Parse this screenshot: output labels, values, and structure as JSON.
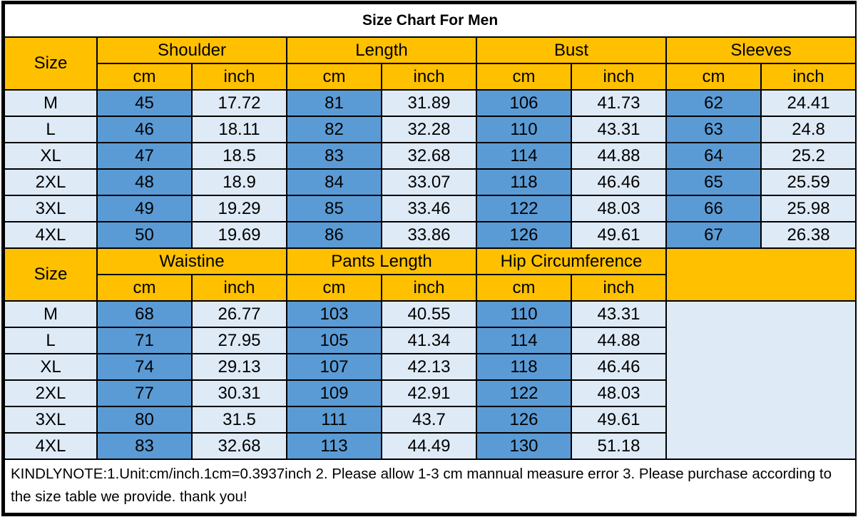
{
  "colors": {
    "header_bg": "#FFC000",
    "cm_bg": "#5B9BD5",
    "light_bg": "#DEEAF6",
    "border_color": "#000000",
    "title_bg": "#FFFFFF",
    "text_color": "#000000"
  },
  "chart_data": {
    "type": "table",
    "title": "Size Chart For Men",
    "tables": [
      {
        "size_label": "Size",
        "groups": [
          "Shoulder",
          "Length",
          "Bust",
          "Sleeves"
        ],
        "unit_labels": [
          "cm",
          "inch"
        ],
        "rows": [
          {
            "size": "M",
            "cells": [
              "45",
              "17.72",
              "81",
              "31.89",
              "106",
              "41.73",
              "62",
              "24.41"
            ]
          },
          {
            "size": "L",
            "cells": [
              "46",
              "18.11",
              "82",
              "32.28",
              "110",
              "43.31",
              "63",
              "24.8"
            ]
          },
          {
            "size": "XL",
            "cells": [
              "47",
              "18.5",
              "83",
              "32.68",
              "114",
              "44.88",
              "64",
              "25.2"
            ]
          },
          {
            "size": "2XL",
            "cells": [
              "48",
              "18.9",
              "84",
              "33.07",
              "118",
              "46.46",
              "65",
              "25.59"
            ]
          },
          {
            "size": "3XL",
            "cells": [
              "49",
              "19.29",
              "85",
              "33.46",
              "122",
              "48.03",
              "66",
              "25.98"
            ]
          },
          {
            "size": "4XL",
            "cells": [
              "50",
              "19.69",
              "86",
              "33.86",
              "126",
              "49.61",
              "67",
              "26.38"
            ]
          }
        ]
      },
      {
        "size_label": "Size",
        "groups": [
          "Waistine",
          "Pants Length",
          "Hip Circumference"
        ],
        "unit_labels": [
          "cm",
          "inch"
        ],
        "rows": [
          {
            "size": "M",
            "cells": [
              "68",
              "26.77",
              "103",
              "40.55",
              "110",
              "43.31"
            ]
          },
          {
            "size": "L",
            "cells": [
              "71",
              "27.95",
              "105",
              "41.34",
              "114",
              "44.88"
            ]
          },
          {
            "size": "XL",
            "cells": [
              "74",
              "29.13",
              "107",
              "42.13",
              "118",
              "46.46"
            ]
          },
          {
            "size": "2XL",
            "cells": [
              "77",
              "30.31",
              "109",
              "42.91",
              "122",
              "48.03"
            ]
          },
          {
            "size": "3XL",
            "cells": [
              "80",
              "31.5",
              "111",
              "43.7",
              "126",
              "49.61"
            ]
          },
          {
            "size": "4XL",
            "cells": [
              "83",
              "32.68",
              "113",
              "44.49",
              "130",
              "51.18"
            ]
          }
        ]
      }
    ],
    "note": "KINDLYNOTE:1.Unit:cm/inch.1cm=0.3937inch 2. Please allow 1-3 cm mannual measure error 3.  Please purchase according to the size table we provide. thank you!"
  }
}
